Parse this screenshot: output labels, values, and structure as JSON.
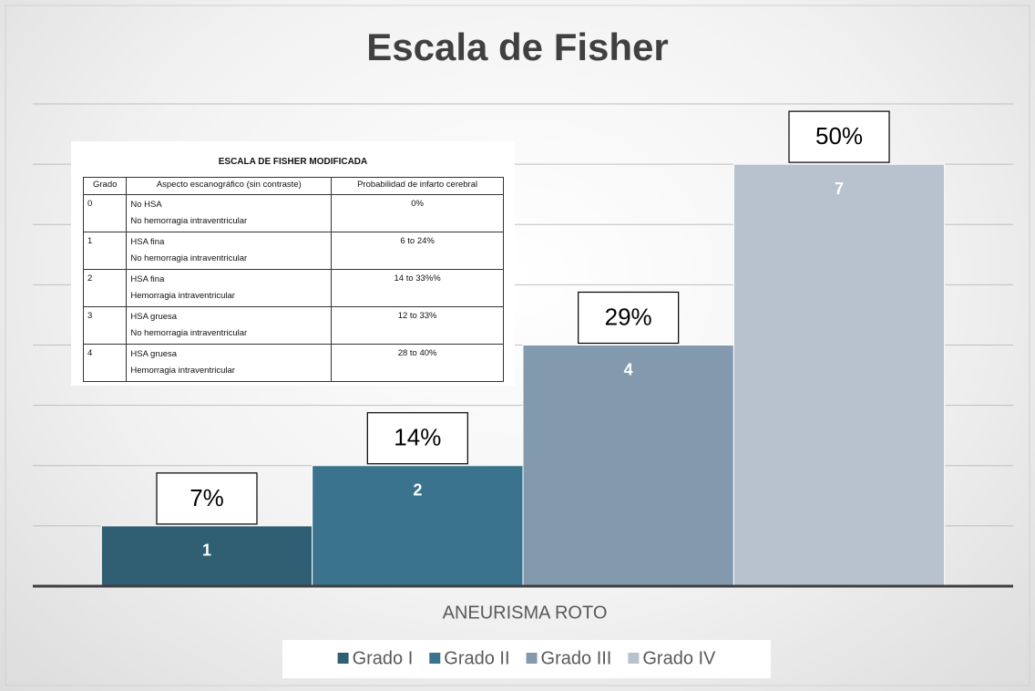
{
  "chart_data": {
    "type": "bar",
    "title": "Escala de Fisher",
    "xlabel": "ANEURISMA ROTO",
    "categories": [
      "ANEURISMA ROTO"
    ],
    "series": [
      {
        "name": "Grado I",
        "color": "#305e73",
        "values": [
          1
        ]
      },
      {
        "name": "Grado II",
        "color": "#3a738e",
        "values": [
          2
        ]
      },
      {
        "name": "Grado III",
        "color": "#8399ae",
        "values": [
          4
        ]
      },
      {
        "name": "Grado IV",
        "color": "#b8c2ce",
        "values": [
          7
        ]
      }
    ],
    "annotations": [
      "7%",
      "14%",
      "29%",
      "50%"
    ],
    "ylim": [
      0,
      8
    ],
    "yticks": [
      0,
      1,
      2,
      3,
      4,
      5,
      6,
      7,
      8
    ],
    "y_tick_labels": false,
    "grid": true,
    "legend": "bottom"
  },
  "table": {
    "title": "ESCALA DE FISHER MODIFICADA",
    "columns": [
      "Grado",
      "Aspecto escanográfico (sin contraste)",
      "Probabilidad de infarto cerebral"
    ],
    "rows": [
      [
        "0",
        [
          "No HSA",
          "No hemorragia intraventricular"
        ],
        "0%"
      ],
      [
        "1",
        [
          "HSA fina",
          "No hemorragia intraventricular"
        ],
        "6 to 24%"
      ],
      [
        "2",
        [
          "HSA fina",
          "Hemorragia intraventricular"
        ],
        "14 to 33%%"
      ],
      [
        "3",
        [
          "HSA gruesa",
          "No hemorragia intraventricular"
        ],
        "12 to 33%"
      ],
      [
        "4",
        [
          "HSA gruesa",
          "Hemorragia intraventricular"
        ],
        "28 to 40%"
      ]
    ]
  }
}
